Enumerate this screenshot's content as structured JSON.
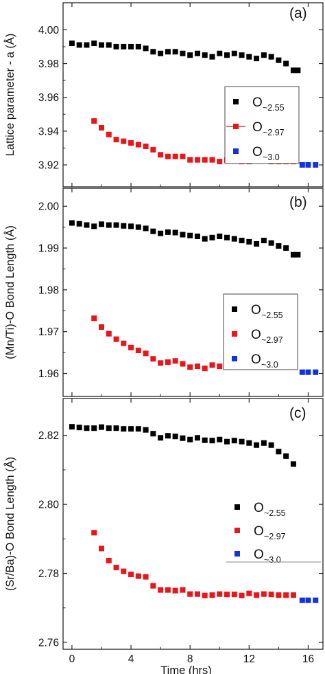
{
  "chart_data": [
    {
      "type": "scatter",
      "panel_label": "(a)",
      "ylabel": "Lattice parameter - a (Å)",
      "xlabel": "",
      "xlim": [
        -0.6,
        17.0
      ],
      "ylim": [
        3.907,
        4.016
      ],
      "xticks": [
        0,
        4,
        8,
        12,
        16
      ],
      "yticks": [
        3.92,
        3.94,
        3.96,
        3.98,
        4.0
      ],
      "ytick_labels": [
        "3.92",
        "3.94",
        "3.96",
        "3.98",
        "4.00"
      ],
      "legend": {
        "placement": "center-right",
        "framed": true,
        "entries": [
          {
            "main": "O",
            "sub": "~2.55",
            "color": "#000000",
            "line": false
          },
          {
            "main": "O",
            "sub": "~2.97",
            "color": "#e8161b",
            "line": true
          },
          {
            "main": "O",
            "sub": "~3.0",
            "color": "#1432d9",
            "line": false
          }
        ]
      },
      "series": [
        {
          "name": "O~2.55",
          "color": "#000000",
          "x": [
            0,
            0.5,
            1,
            1.5,
            2,
            2.5,
            3,
            3.5,
            4,
            4.5,
            5,
            5.5,
            6,
            6.5,
            7,
            7.5,
            8,
            8.5,
            9,
            9.5,
            10,
            10.5,
            11,
            11.5,
            12,
            12.5,
            13,
            13.5,
            14,
            14.5,
            15,
            15.3
          ],
          "y": [
            3.992,
            3.991,
            3.991,
            3.992,
            3.991,
            3.991,
            3.99,
            3.99,
            3.99,
            3.99,
            3.989,
            3.987,
            3.986,
            3.987,
            3.987,
            3.986,
            3.985,
            3.986,
            3.985,
            3.984,
            3.986,
            3.985,
            3.986,
            3.985,
            3.984,
            3.983,
            3.985,
            3.984,
            3.982,
            3.98,
            3.976,
            3.976
          ]
        },
        {
          "name": "O~2.97",
          "color": "#e8161b",
          "x": [
            1.5,
            2,
            2.5,
            3,
            3.5,
            4,
            4.5,
            5,
            5.5,
            6,
            6.5,
            7,
            7.5,
            8,
            8.5,
            9,
            9.5,
            10,
            10.5,
            11,
            11.5,
            12,
            12.5,
            13,
            13.5,
            14,
            14.5,
            15
          ],
          "y": [
            3.946,
            3.942,
            3.938,
            3.935,
            3.934,
            3.933,
            3.932,
            3.931,
            3.929,
            3.926,
            3.925,
            3.925,
            3.925,
            3.923,
            3.923,
            3.923,
            3.923,
            3.922,
            3.923,
            3.923,
            3.922,
            3.922,
            3.923,
            3.923,
            3.922,
            3.922,
            3.922,
            3.922
          ]
        },
        {
          "name": "O~3.0",
          "color": "#1432d9",
          "x": [
            15.6,
            16.0,
            16.5
          ],
          "y": [
            3.92,
            3.92,
            3.92
          ]
        }
      ]
    },
    {
      "type": "scatter",
      "panel_label": "(b)",
      "ylabel": "(Mn/Ti)-O Bond Length (Å)",
      "xlabel": "",
      "xlim": [
        -0.6,
        17.0
      ],
      "ylim": [
        1.9545,
        2.0043
      ],
      "xticks": [
        0,
        4,
        8,
        12,
        16
      ],
      "yticks": [
        1.96,
        1.97,
        1.98,
        1.99,
        2.0
      ],
      "ytick_labels": [
        "1.96",
        "1.97",
        "1.98",
        "1.99",
        "2.00"
      ],
      "legend": {
        "placement": "right",
        "framed": true,
        "entries": [
          {
            "main": "O",
            "sub": "~2.55",
            "color": "#000000",
            "line": false
          },
          {
            "main": "O",
            "sub": "~2.97",
            "color": "#e8161b",
            "line": false
          },
          {
            "main": "O",
            "sub": "~3.0",
            "color": "#1432d9",
            "line": false
          }
        ]
      },
      "series": [
        {
          "name": "O~2.55",
          "color": "#000000",
          "x": [
            0,
            0.5,
            1,
            1.5,
            2,
            2.5,
            3,
            3.5,
            4,
            4.5,
            5,
            5.5,
            6,
            6.5,
            7,
            7.5,
            8,
            8.5,
            9,
            9.5,
            10,
            10.5,
            11,
            11.5,
            12,
            12.5,
            13,
            13.5,
            14,
            14.5,
            15,
            15.3
          ],
          "y": [
            1.996,
            1.9958,
            1.9955,
            1.9952,
            1.9957,
            1.9955,
            1.9955,
            1.9953,
            1.9952,
            1.995,
            1.9947,
            1.994,
            1.9935,
            1.9938,
            1.9937,
            1.9932,
            1.993,
            1.9928,
            1.9922,
            1.9925,
            1.9928,
            1.9925,
            1.9922,
            1.9918,
            1.9915,
            1.991,
            1.9918,
            1.9912,
            1.9905,
            1.99,
            1.9884,
            1.9884
          ]
        },
        {
          "name": "O~2.97",
          "color": "#e8161b",
          "x": [
            1.5,
            2,
            2.5,
            3,
            3.5,
            4,
            4.5,
            5,
            5.5,
            6,
            6.5,
            7,
            7.5,
            8,
            8.5,
            9,
            9.5,
            10,
            10.5,
            11,
            11.5,
            12,
            12.5,
            13,
            13.5,
            14,
            14.5,
            15
          ],
          "y": [
            1.9732,
            1.9711,
            1.9695,
            1.9682,
            1.9672,
            1.9662,
            1.9655,
            1.9648,
            1.9635,
            1.9625,
            1.9627,
            1.963,
            1.9623,
            1.9615,
            1.9617,
            1.9612,
            1.962,
            1.9617,
            1.9615,
            1.9618,
            1.9617,
            1.9615,
            1.9618,
            1.9617,
            1.9615,
            1.9615,
            1.9615,
            1.9615
          ]
        },
        {
          "name": "O~3.0",
          "color": "#1432d9",
          "x": [
            15.6,
            16.0,
            16.5
          ],
          "y": [
            1.9603,
            1.9603,
            1.9603
          ]
        }
      ]
    },
    {
      "type": "scatter",
      "panel_label": "(c)",
      "ylabel": "(Sr/Ba)-O Bond Length (Å)",
      "xlabel": "Time (hrs)",
      "xlim": [
        -0.6,
        17.0
      ],
      "ylim": [
        2.758,
        2.8307
      ],
      "xticks": [
        0,
        4,
        8,
        12,
        16
      ],
      "xtick_labels": [
        "0",
        "4",
        "8",
        "12",
        "16"
      ],
      "yticks": [
        2.76,
        2.78,
        2.8,
        2.82
      ],
      "ytick_labels": [
        "2.76",
        "2.78",
        "2.80",
        "2.82"
      ],
      "legend": {
        "placement": "right",
        "framed": false,
        "entries": [
          {
            "main": "O",
            "sub": "~2.55",
            "color": "#000000",
            "line": false
          },
          {
            "main": "O",
            "sub": "~2.97",
            "color": "#e8161b",
            "line": false
          },
          {
            "main": "O",
            "sub": "~3.0",
            "color": "#1432d9",
            "line": false
          }
        ]
      },
      "series": [
        {
          "name": "O~2.55",
          "color": "#000000",
          "x": [
            0,
            0.5,
            1,
            1.5,
            2,
            2.5,
            3,
            3.5,
            4,
            4.5,
            5,
            5.5,
            6,
            6.5,
            7,
            7.5,
            8,
            8.5,
            9,
            9.5,
            10,
            10.5,
            11,
            11.5,
            12,
            12.5,
            13,
            13.5,
            14,
            14.5,
            15
          ],
          "y": [
            2.8225,
            2.8223,
            2.8221,
            2.8221,
            2.8224,
            2.8221,
            2.8221,
            2.8219,
            2.8219,
            2.8219,
            2.8216,
            2.8205,
            2.8193,
            2.8199,
            2.8197,
            2.8192,
            2.8188,
            2.8193,
            2.8186,
            2.8185,
            2.8188,
            2.8182,
            2.8185,
            2.8182,
            2.8178,
            2.8172,
            2.8178,
            2.8172,
            2.8153,
            2.814,
            2.8117
          ]
        },
        {
          "name": "O~2.97",
          "color": "#e8161b",
          "x": [
            1.5,
            2,
            2.5,
            3,
            3.5,
            4,
            4.5,
            5,
            5.5,
            6,
            6.5,
            7,
            7.5,
            8,
            8.5,
            9,
            9.5,
            10,
            10.5,
            11,
            11.5,
            12,
            12.5,
            13,
            13.5,
            14,
            14.5,
            15
          ],
          "y": [
            2.7918,
            2.7872,
            2.7837,
            2.7817,
            2.7806,
            2.7797,
            2.7792,
            2.779,
            2.7764,
            2.7752,
            2.7752,
            2.775,
            2.7752,
            2.774,
            2.774,
            2.7736,
            2.7737,
            2.774,
            2.7739,
            2.7739,
            2.7736,
            2.7742,
            2.7737,
            2.774,
            2.7739,
            2.7737,
            2.7737,
            2.7737
          ]
        },
        {
          "name": "O~3.0",
          "color": "#1432d9",
          "x": [
            15.6,
            16.0,
            16.5
          ],
          "y": [
            2.7722,
            2.7722,
            2.7722
          ]
        }
      ]
    }
  ]
}
